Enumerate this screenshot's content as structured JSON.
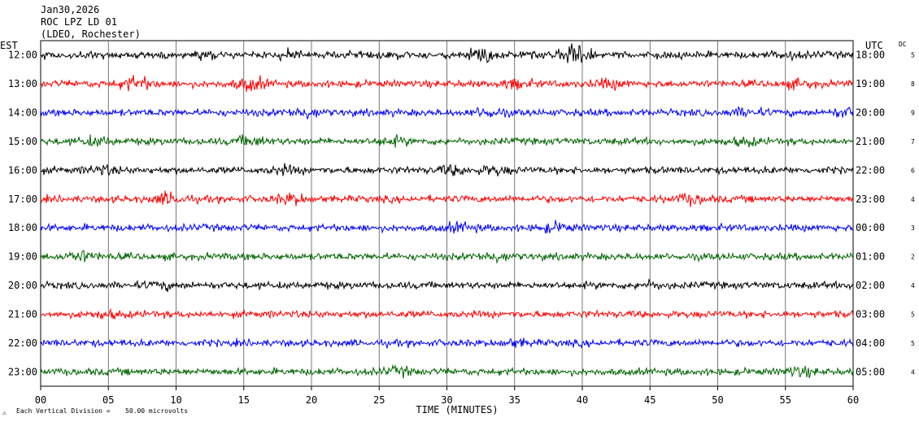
{
  "header": {
    "date": "Jan30,2026",
    "station": "ROC LPZ LD 01",
    "network": "(LDEO, Rochester)"
  },
  "chart_data": {
    "type": "line",
    "subtype": "helicorder",
    "xlabel": "TIME (MINUTES)",
    "xlim": [
      0,
      60
    ],
    "x_ticks": [
      "00",
      "05",
      "10",
      "15",
      "20",
      "25",
      "30",
      "35",
      "40",
      "45",
      "50",
      "55",
      "60"
    ],
    "left_axis_label": "EST",
    "right_axis_label": "UTC",
    "dc_label": "DC",
    "scale_note_prefix": "Each Vertical Division =",
    "scale_note_value": "50.00 microvolts",
    "grid": true,
    "trace_colors": [
      "#000000",
      "#ff0000",
      "#0000ff",
      "#006400"
    ],
    "rows": [
      {
        "est": "12:00",
        "utc": "18:00",
        "dc": "5"
      },
      {
        "est": "13:00",
        "utc": "19:00",
        "dc": "8"
      },
      {
        "est": "14:00",
        "utc": "20:00",
        "dc": "9"
      },
      {
        "est": "15:00",
        "utc": "21:00",
        "dc": "7"
      },
      {
        "est": "16:00",
        "utc": "22:00",
        "dc": "6"
      },
      {
        "est": "17:00",
        "utc": "23:00",
        "dc": "4"
      },
      {
        "est": "18:00",
        "utc": "00:00",
        "dc": "3"
      },
      {
        "est": "19:00",
        "utc": "01:00",
        "dc": "2"
      },
      {
        "est": "20:00",
        "utc": "02:00",
        "dc": "4"
      },
      {
        "est": "21:00",
        "utc": "03:00",
        "dc": "5"
      },
      {
        "est": "22:00",
        "utc": "04:00",
        "dc": "5"
      },
      {
        "est": "23:00",
        "utc": "05:00",
        "dc": "4"
      }
    ]
  }
}
